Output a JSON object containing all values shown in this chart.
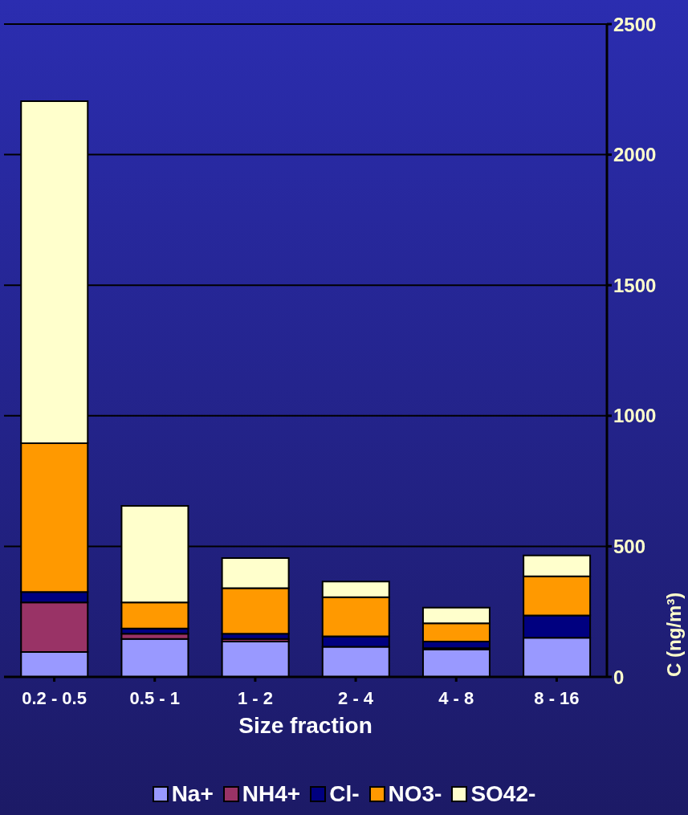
{
  "chart_data": {
    "type": "bar",
    "stacked": true,
    "xlabel": "Size fraction",
    "ylabel": "C (ng/m³)",
    "categories": [
      "0.2 - 0.5",
      "0.5 - 1",
      "1 - 2",
      "2 - 4",
      "4 - 8",
      "8 - 16"
    ],
    "series": [
      {
        "name": "Na+",
        "color": "#9999ff",
        "values": [
          95,
          145,
          135,
          115,
          105,
          150
        ]
      },
      {
        "name": "NH4+",
        "color": "#993366",
        "values": [
          190,
          20,
          10,
          0,
          5,
          0
        ]
      },
      {
        "name": "Cl-",
        "color": "#000080",
        "values": [
          40,
          20,
          20,
          40,
          25,
          85
        ]
      },
      {
        "name": "NO3-",
        "color": "#ff9900",
        "values": [
          570,
          100,
          175,
          150,
          70,
          150
        ]
      },
      {
        "name": "SO42-",
        "color": "#ffffcc",
        "values": [
          1310,
          370,
          115,
          60,
          60,
          80
        ]
      }
    ],
    "ylim": [
      0,
      2500
    ],
    "yticks": [
      0,
      500,
      1000,
      1500,
      2000,
      2500
    ],
    "grid": "y",
    "legend": "bottom"
  }
}
